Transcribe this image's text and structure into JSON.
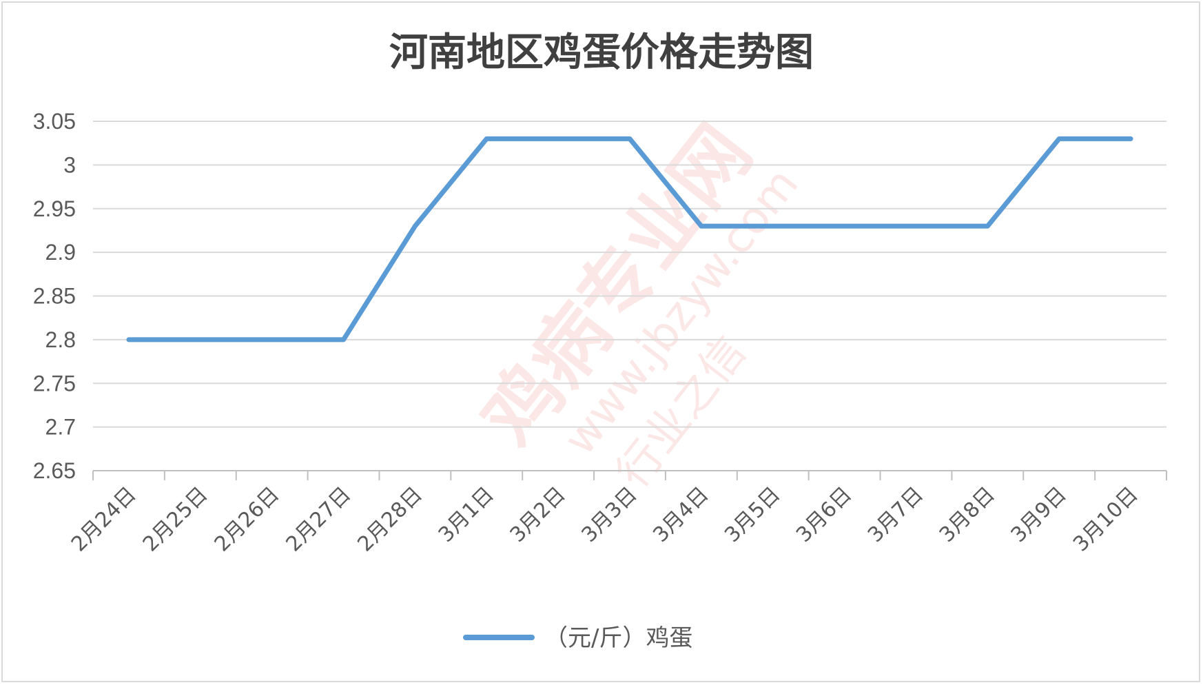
{
  "chart_data": {
    "type": "line",
    "title": "河南地区鸡蛋价格走势图",
    "xlabel": "",
    "ylabel": "",
    "categories": [
      "2月24日",
      "2月25日",
      "2月26日",
      "2月27日",
      "2月28日",
      "3月1日",
      "3月2日",
      "3月3日",
      "3月4日",
      "3月5日",
      "3月6日",
      "3月7日",
      "3月8日",
      "3月9日",
      "3月10日"
    ],
    "series": [
      {
        "name": "（元/斤）鸡蛋",
        "values": [
          2.8,
          2.8,
          2.8,
          2.8,
          2.93,
          3.03,
          3.03,
          3.03,
          2.93,
          2.93,
          2.93,
          2.93,
          2.93,
          3.03,
          3.03
        ]
      }
    ],
    "ylim": [
      2.65,
      3.05
    ],
    "yticks": [
      "3.05",
      "3",
      "2.95",
      "2.9",
      "2.85",
      "2.8",
      "2.75",
      "2.7",
      "2.65"
    ],
    "grid": true,
    "legend": "bottom",
    "colors": {
      "line": "#5b9bd5",
      "grid": "#d9d9d9",
      "axis": "#bfbfbf",
      "text": "#595959",
      "title": "#404040"
    }
  },
  "watermark": {
    "text": "鸡病专业网",
    "url": "www.jbzyw.com",
    "slogan": "行业之信"
  }
}
